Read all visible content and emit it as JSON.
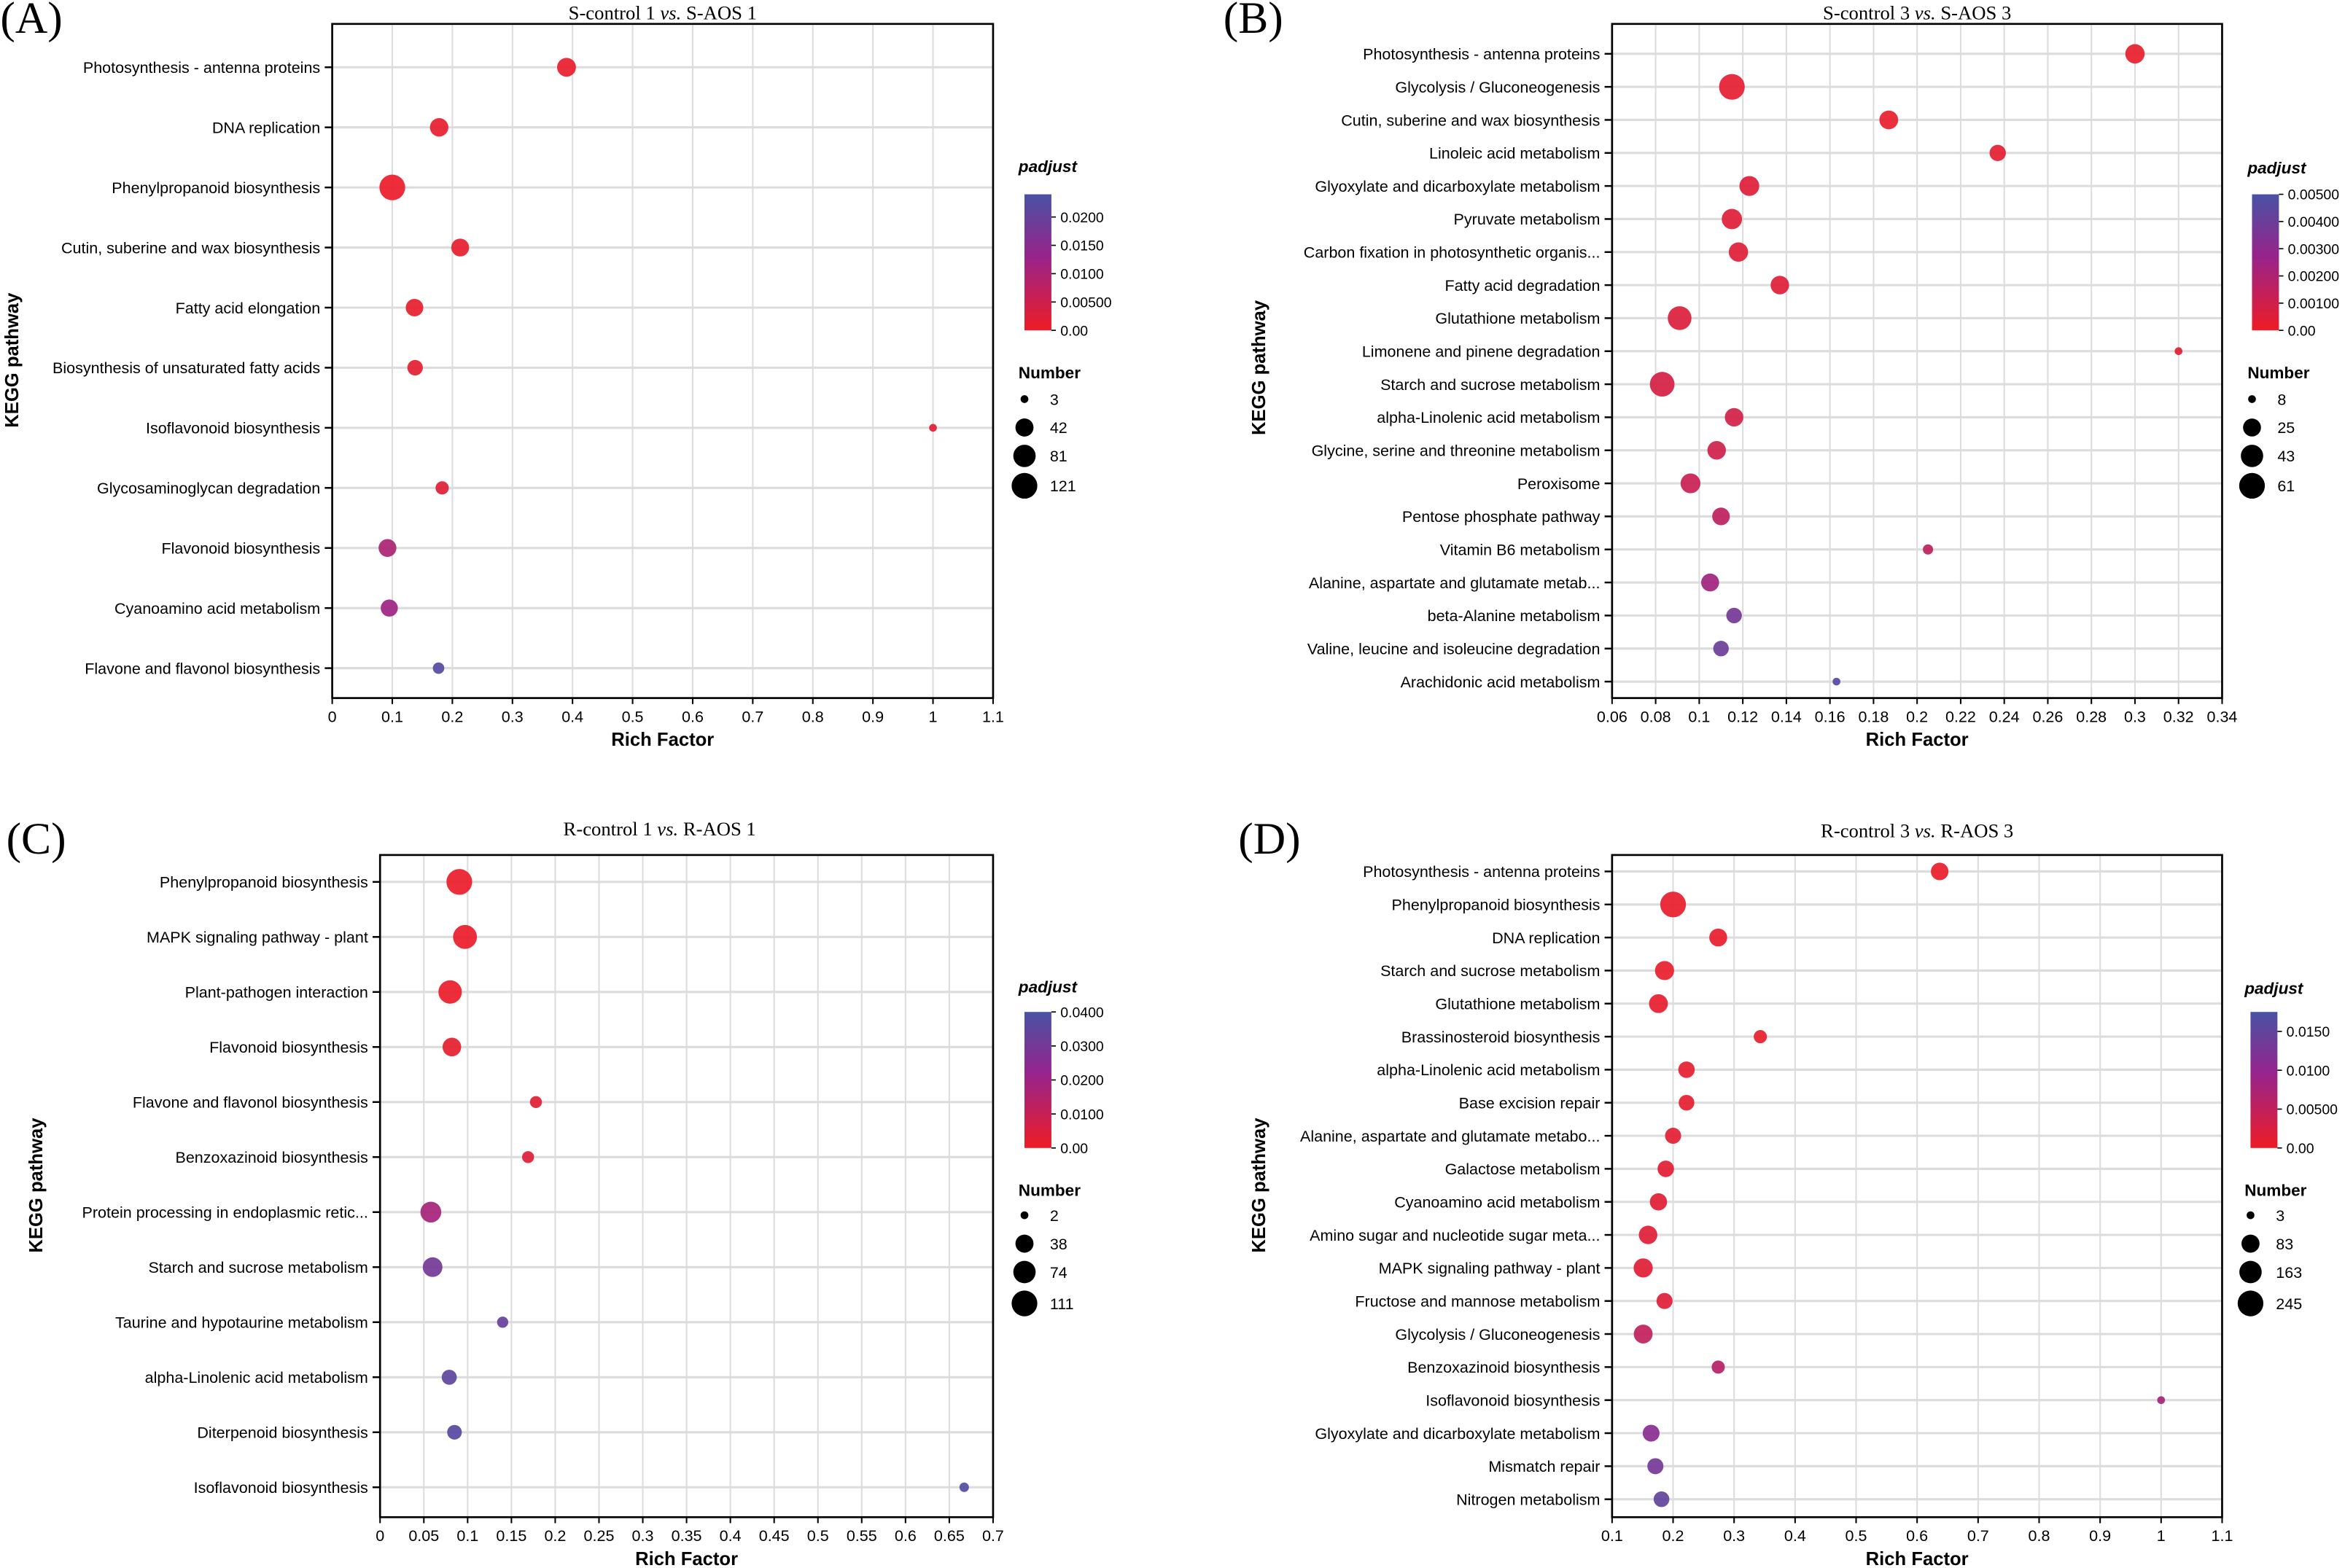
{
  "chart_data": [
    {
      "type": "scatter",
      "panel_label": "(A)",
      "title_left": "S-control 1 ",
      "title_vs": "vs.",
      "title_right": " S-AOS 1",
      "xlabel": "Rich Factor",
      "ylabel": "KEGG pathway",
      "xlim": [
        0,
        1.1
      ],
      "xticks": [
        0,
        0.1,
        0.2,
        0.3,
        0.4,
        0.5,
        0.6,
        0.7,
        0.8,
        0.9,
        1,
        1.1
      ],
      "xtick_labels": [
        "0",
        "0.1",
        "0.2",
        "0.3",
        "0.4",
        "0.5",
        "0.6",
        "0.7",
        "0.8",
        "0.9",
        "1",
        "1.1"
      ],
      "grid": true,
      "categories": [
        "Photosynthesis - antenna proteins",
        "DNA replication",
        "Phenylpropanoid biosynthesis",
        "Cutin, suberine and wax biosynthesis",
        "Fatty acid elongation",
        "Biosynthesis of unsaturated fatty acids",
        "Isoflavonoid biosynthesis",
        "Glycosaminoglycan degradation",
        "Flavonoid biosynthesis",
        "Cyanoamino acid metabolism",
        "Flavone and flavonol biosynthesis"
      ],
      "rich_factor": [
        0.39,
        0.178,
        0.1,
        0.213,
        0.137,
        0.138,
        1.0,
        0.183,
        0.092,
        0.095,
        0.177
      ],
      "number": [
        48,
        45,
        121,
        40,
        38,
        25,
        3,
        14,
        40,
        35,
        8
      ],
      "padjust": [
        0.0008,
        0.001,
        0.0005,
        0.001,
        0.001,
        0.0015,
        0.002,
        0.002,
        0.01,
        0.012,
        0.022
      ],
      "color_legend": {
        "title": "padjust",
        "max": 0.024,
        "ticks": [
          0,
          0.005,
          0.01,
          0.015,
          0.02
        ],
        "tick_labels": [
          "0.00",
          "0.00500",
          "0.0100",
          "0.0150",
          "0.0200"
        ]
      },
      "size_legend": {
        "title": "Number",
        "values": [
          3,
          42,
          81,
          121
        ],
        "labels": [
          "3",
          "42",
          "81",
          "121"
        ]
      }
    },
    {
      "type": "scatter",
      "panel_label": "(B)",
      "title_left": "S-control 3 ",
      "title_vs": "vs.",
      "title_right": " S-AOS 3",
      "xlabel": "Rich Factor",
      "ylabel": "KEGG pathway",
      "xlim": [
        0.06,
        0.34
      ],
      "xticks": [
        0.06,
        0.08,
        0.1,
        0.12,
        0.14,
        0.16,
        0.18,
        0.2,
        0.22,
        0.24,
        0.26,
        0.28,
        0.3,
        0.32,
        0.34
      ],
      "xtick_labels": [
        "0.06",
        "0.08",
        "0.1",
        "0.12",
        "0.14",
        "0.16",
        "0.18",
        "0.2",
        "0.22",
        "0.24",
        "0.26",
        "0.28",
        "0.3",
        "0.32",
        "0.34"
      ],
      "grid": true,
      "categories": [
        "Photosynthesis - antenna proteins",
        "Glycolysis / Gluconeogenesis",
        "Cutin, suberine and wax biosynthesis",
        "Linoleic acid metabolism",
        "Glyoxylate and dicarboxylate metabolism",
        "Pyruvate metabolism",
        "Carbon fixation in photosynthetic organis...",
        "Fatty acid degradation",
        "Glutathione metabolism",
        "Limonene and pinene degradation",
        "Starch and sucrose metabolism",
        "alpha-Linolenic acid metabolism",
        "Glycine, serine and threonine metabolism",
        "Peroxisome",
        "Pentose phosphate pathway",
        "Vitamin B6 metabolism",
        "Alanine, aspartate and glutamate metab...",
        "beta-Alanine metabolism",
        "Valine, leucine and isoleucine degradation",
        "Arachidonic acid metabolism"
      ],
      "rich_factor": [
        0.3,
        0.115,
        0.187,
        0.237,
        0.123,
        0.115,
        0.118,
        0.137,
        0.091,
        0.32,
        0.083,
        0.116,
        0.108,
        0.096,
        0.11,
        0.205,
        0.105,
        0.116,
        0.11,
        0.163
      ],
      "number": [
        30,
        61,
        28,
        20,
        32,
        34,
        30,
        27,
        50,
        8,
        55,
        27,
        27,
        32,
        24,
        9,
        25,
        18,
        18,
        8
      ],
      "padjust": [
        0.0002,
        0.0003,
        0.0002,
        0.0003,
        0.0005,
        0.0005,
        0.0005,
        0.0005,
        0.0006,
        0.0004,
        0.0008,
        0.0009,
        0.001,
        0.0012,
        0.0015,
        0.0015,
        0.0024,
        0.0037,
        0.004,
        0.0045
      ],
      "color_legend": {
        "title": "padjust",
        "max": 0.005,
        "ticks": [
          0,
          0.001,
          0.002,
          0.003,
          0.004,
          0.005
        ],
        "tick_labels": [
          "0.00",
          "0.00100",
          "0.00200",
          "0.00300",
          "0.00400",
          "0.00500"
        ]
      },
      "size_legend": {
        "title": "Number",
        "values": [
          8,
          25,
          43,
          61
        ],
        "labels": [
          "8",
          "25",
          "43",
          "61"
        ]
      }
    },
    {
      "type": "scatter",
      "panel_label": "(C)",
      "title_left": "R-control 1 ",
      "title_vs": "vs.",
      "title_right": " R-AOS 1",
      "xlabel": "Rich Factor",
      "ylabel": "KEGG pathway",
      "xlim": [
        0,
        0.7
      ],
      "xticks": [
        0,
        0.05,
        0.1,
        0.15,
        0.2,
        0.25,
        0.3,
        0.35,
        0.4,
        0.45,
        0.5,
        0.55,
        0.6,
        0.65,
        0.7
      ],
      "xtick_labels": [
        "0",
        "0.05",
        "0.1",
        "0.15",
        "0.2",
        "0.25",
        "0.3",
        "0.35",
        "0.4",
        "0.45",
        "0.5",
        "0.55",
        "0.6",
        "0.65",
        "0.7"
      ],
      "grid": true,
      "categories": [
        "Phenylpropanoid biosynthesis",
        "MAPK signaling pathway - plant",
        "Plant-pathogen interaction",
        "Flavonoid biosynthesis",
        "Flavone and flavonol biosynthesis",
        "Benzoxazinoid biosynthesis",
        "Protein processing in endoplasmic retic...",
        "Starch and sucrose metabolism",
        "Taurine and hypotaurine metabolism",
        "alpha-Linolenic acid metabolism",
        "Diterpenoid biosynthesis",
        "Isoflavonoid biosynthesis"
      ],
      "rich_factor": [
        0.0905,
        0.097,
        0.08,
        0.082,
        0.178,
        0.169,
        0.058,
        0.06,
        0.14,
        0.079,
        0.085,
        0.667
      ],
      "number": [
        111,
        90,
        85,
        42,
        8,
        8,
        60,
        50,
        6,
        20,
        18,
        3
      ],
      "padjust": [
        0.001,
        0.001,
        0.001,
        0.002,
        0.003,
        0.004,
        0.018,
        0.03,
        0.033,
        0.035,
        0.036,
        0.038
      ],
      "color_legend": {
        "title": "padjust",
        "max": 0.04,
        "ticks": [
          0,
          0.01,
          0.02,
          0.03,
          0.04
        ],
        "tick_labels": [
          "0.00",
          "0.0100",
          "0.0200",
          "0.0300",
          "0.0400"
        ]
      },
      "size_legend": {
        "title": "Number",
        "values": [
          2,
          38,
          74,
          111
        ],
        "labels": [
          "2",
          "38",
          "74",
          "111"
        ]
      }
    },
    {
      "type": "scatter",
      "panel_label": "(D)",
      "title_left": "R-control 3 ",
      "title_vs": "vs.",
      "title_right": " R-AOS 3",
      "xlabel": "Rich Factor",
      "ylabel": "KEGG pathway",
      "xlim": [
        0.1,
        1.1
      ],
      "xticks": [
        0.1,
        0.2,
        0.3,
        0.4,
        0.5,
        0.6,
        0.7,
        0.8,
        0.9,
        1,
        1.1
      ],
      "xtick_labels": [
        "0.1",
        "0.2",
        "0.3",
        "0.4",
        "0.5",
        "0.6",
        "0.7",
        "0.8",
        "0.9",
        "1",
        "1.1"
      ],
      "grid": true,
      "categories": [
        "Photosynthesis - antenna proteins",
        "Phenylpropanoid biosynthesis",
        "DNA replication",
        "Starch and sucrose metabolism",
        "Glutathione metabolism",
        "Brassinosteroid biosynthesis",
        "alpha-Linolenic acid metabolism",
        "Base excision repair",
        "Alanine, aspartate and glutamate metabo...",
        "Galactose metabolism",
        "Cyanoamino acid metabolism",
        "Amino sugar and nucleotide sugar meta...",
        "MAPK signaling pathway - plant",
        "Fructose and mannose metabolism",
        "Glycolysis / Gluconeogenesis",
        "Benzoxazinoid biosynthesis",
        "Isoflavonoid biosynthesis",
        "Glyoxylate and dicarboxylate metabolism",
        "Mismatch repair",
        "Nitrogen metabolism"
      ],
      "rich_factor": [
        0.637,
        0.2,
        0.274,
        0.186,
        0.176,
        0.343,
        0.222,
        0.222,
        0.2,
        0.188,
        0.176,
        0.159,
        0.151,
        0.186,
        0.151,
        0.274,
        1.0,
        0.164,
        0.171,
        0.181
      ],
      "number": [
        75,
        245,
        80,
        100,
        95,
        25,
        60,
        50,
        55,
        60,
        70,
        90,
        100,
        55,
        95,
        25,
        3,
        65,
        55,
        50
      ],
      "padjust": [
        0.0004,
        0.0006,
        0.0006,
        0.0007,
        0.0008,
        0.0008,
        0.0009,
        0.001,
        0.0012,
        0.0013,
        0.0014,
        0.0015,
        0.0016,
        0.0017,
        0.005,
        0.0062,
        0.008,
        0.011,
        0.013,
        0.015
      ],
      "color_legend": {
        "title": "padjust",
        "max": 0.0175,
        "ticks": [
          0,
          0.005,
          0.01,
          0.015
        ],
        "tick_labels": [
          "0.00",
          "0.00500",
          "0.0100",
          "0.0150"
        ]
      },
      "size_legend": {
        "title": "Number",
        "values": [
          3,
          83,
          163,
          245
        ],
        "labels": [
          "3",
          "83",
          "163",
          "245"
        ]
      }
    }
  ]
}
